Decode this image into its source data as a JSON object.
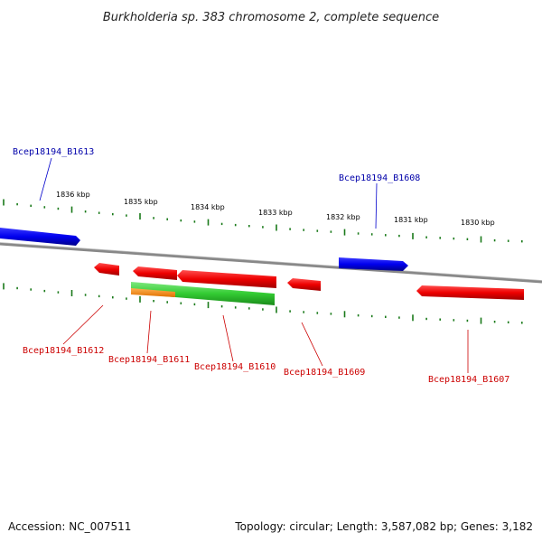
{
  "title": "Burkholderia sp. 383 chromosome 2, complete sequence",
  "footer": {
    "accession": "Accession: NC_007511",
    "summary": "Topology: circular; Length: 3,587,082 bp; Genes: 3,182"
  },
  "scale": {
    "labels": [
      "1836 kbp",
      "1835 kbp",
      "1834 kbp",
      "1833 kbp",
      "1832 kbp",
      "1831 kbp",
      "1830 kbp"
    ]
  },
  "genes": {
    "top": [
      {
        "name": "Bcep18194_B1613",
        "color": "#0000ee"
      },
      {
        "name": "Bcep18194_B1608",
        "color": "#0000ee"
      }
    ],
    "bottom": [
      {
        "name": "Bcep18194_B1612",
        "color": "#ee0000"
      },
      {
        "name": "Bcep18194_B1611",
        "color": "#ee0000"
      },
      {
        "name": "Bcep18194_B1610",
        "color": "#ee0000"
      },
      {
        "name": "Bcep18194_B1609",
        "color": "#ee0000"
      },
      {
        "name": "Bcep18194_B1607",
        "color": "#ee0000"
      }
    ]
  },
  "colors": {
    "forward_gene": "#0000ee",
    "reverse_gene": "#ee0000",
    "green_feature": "#33cc33",
    "orange_feature": "#ff8800",
    "backbone": "#888888",
    "ticks": "#1a7a1a"
  }
}
